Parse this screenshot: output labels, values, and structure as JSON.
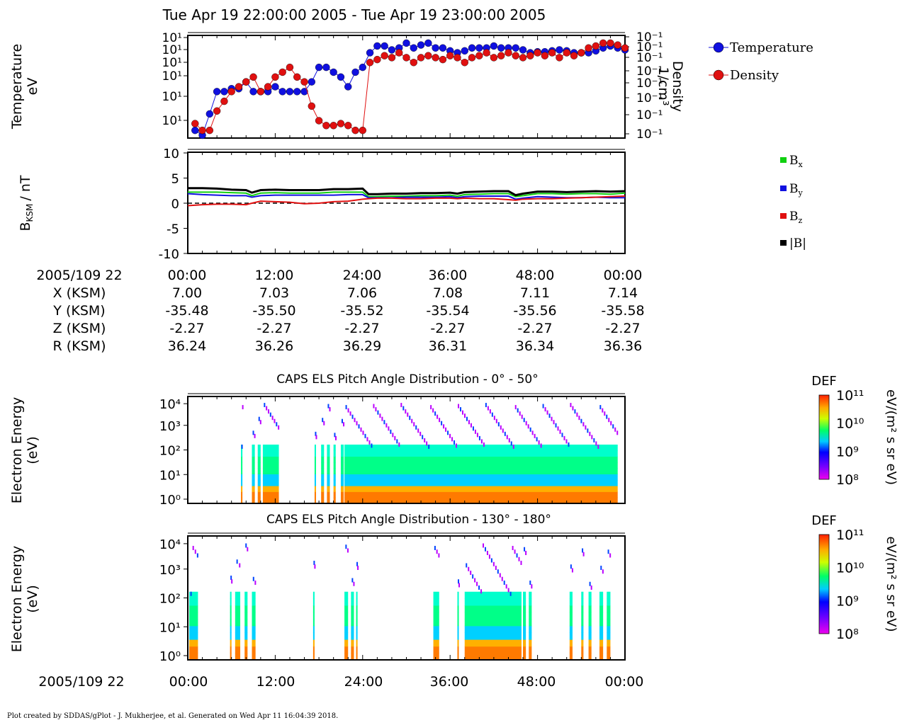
{
  "title": "Tue Apr 19 22:00:00 2005 - Tue Apr 19 23:00:00 2005",
  "footer": "Plot created by SDDAS/gPlot - J. Mukherjee, et al.  Generated on Wed Apr 11 16:04:39 2018.",
  "colors": {
    "temperature": "#1010e0",
    "density": "#e01010",
    "bx": "#10d010",
    "by": "#1010e0",
    "bz": "#e01010",
    "btot": "#000000"
  },
  "chart_data": [
    {
      "type": "scatter",
      "ylabel_left": "Temperature",
      "ylabel_left_unit": "eV",
      "ylabel_right": "Density",
      "ylabel_right_unit": "1/cm³",
      "yticks_left": [
        "10¹",
        "10¹",
        "10¹",
        "10¹",
        "10¹",
        "10¹",
        "10¹"
      ],
      "yticks_right": [
        "10⁻¹",
        "10⁻¹",
        "10⁻¹",
        "10⁻¹",
        "10⁻¹",
        "10⁻¹",
        "10⁻¹",
        "10⁻¹"
      ],
      "xlim": [
        0,
        60
      ],
      "legend": [
        "Temperature",
        "Density"
      ],
      "legend_position": "right-outside",
      "series": [
        {
          "name": "Temperature",
          "x": [
            1,
            2,
            3,
            4,
            5,
            6,
            7,
            8,
            9,
            10,
            11,
            12,
            13,
            14,
            15,
            16,
            17,
            18,
            19,
            20,
            21,
            22,
            23,
            24,
            25,
            26,
            27,
            28,
            29,
            30,
            31,
            32,
            33,
            34,
            35,
            36,
            37,
            38,
            39,
            40,
            41,
            42,
            43,
            44,
            45,
            46,
            47,
            48,
            49,
            50,
            51,
            52,
            53,
            54,
            55,
            56,
            57,
            58,
            59,
            60
          ],
          "y": [
            0.05,
            0.0,
            0.22,
            0.45,
            0.45,
            0.48,
            0.48,
            0.55,
            0.45,
            0.45,
            0.45,
            0.5,
            0.45,
            0.45,
            0.45,
            0.45,
            0.55,
            0.7,
            0.7,
            0.65,
            0.6,
            0.5,
            0.65,
            0.7,
            0.85,
            0.92,
            0.92,
            0.88,
            0.9,
            0.95,
            0.9,
            0.93,
            0.95,
            0.9,
            0.9,
            0.87,
            0.85,
            0.87,
            0.9,
            0.9,
            0.9,
            0.92,
            0.9,
            0.9,
            0.9,
            0.88,
            0.85,
            0.86,
            0.86,
            0.87,
            0.88,
            0.87,
            0.85,
            0.85,
            0.85,
            0.87,
            0.9,
            0.92,
            0.9,
            0.88
          ]
        },
        {
          "name": "Density",
          "x": [
            1,
            2,
            3,
            4,
            5,
            6,
            7,
            8,
            9,
            10,
            11,
            12,
            13,
            14,
            15,
            16,
            17,
            18,
            19,
            20,
            21,
            22,
            23,
            24,
            25,
            26,
            27,
            28,
            29,
            30,
            31,
            32,
            33,
            34,
            35,
            36,
            37,
            38,
            39,
            40,
            41,
            42,
            43,
            44,
            45,
            46,
            47,
            48,
            49,
            50,
            51,
            52,
            53,
            54,
            55,
            56,
            57,
            58,
            59,
            60
          ],
          "y": [
            0.12,
            0.05,
            0.05,
            0.25,
            0.35,
            0.45,
            0.5,
            0.55,
            0.6,
            0.45,
            0.5,
            0.6,
            0.65,
            0.7,
            0.6,
            0.55,
            0.3,
            0.15,
            0.1,
            0.1,
            0.12,
            0.1,
            0.05,
            0.05,
            0.75,
            0.78,
            0.82,
            0.8,
            0.85,
            0.8,
            0.75,
            0.8,
            0.82,
            0.8,
            0.78,
            0.82,
            0.8,
            0.75,
            0.8,
            0.82,
            0.85,
            0.8,
            0.82,
            0.85,
            0.82,
            0.8,
            0.82,
            0.85,
            0.82,
            0.85,
            0.8,
            0.85,
            0.82,
            0.85,
            0.9,
            0.92,
            0.95,
            0.95,
            0.93,
            0.9
          ]
        }
      ]
    },
    {
      "type": "line",
      "ylabel": "B",
      "ylabel_sub": "KSM",
      "ylabel_unit": "/ nT",
      "ylim": [
        -10,
        10
      ],
      "yticks": [
        10,
        5,
        0,
        -5,
        -10
      ],
      "xlim": [
        0,
        60
      ],
      "legend_position": "right-outside",
      "legend": [
        {
          "label": "B",
          "sub": "x",
          "color_key": "bx"
        },
        {
          "label": "B",
          "sub": "y",
          "color_key": "by"
        },
        {
          "label": "B",
          "sub": "z",
          "color_key": "bz"
        },
        {
          "label": "|B|",
          "sub": "",
          "color_key": "btot"
        }
      ],
      "x": [
        0,
        2,
        4,
        6,
        8,
        8.8,
        10,
        12,
        14,
        16,
        18,
        20,
        22,
        24,
        24.8,
        26,
        28,
        30,
        32,
        34,
        36,
        37,
        38,
        40,
        42,
        44,
        45,
        46,
        48,
        50,
        52,
        54,
        56,
        58,
        60
      ],
      "series": [
        {
          "name": "Bx",
          "color_key": "bx",
          "values": [
            2.2,
            2.2,
            2.2,
            2.1,
            2.0,
            1.5,
            2.0,
            2.1,
            2.0,
            2.0,
            2.0,
            2.2,
            2.2,
            2.2,
            1.3,
            1.3,
            1.4,
            1.4,
            1.5,
            1.5,
            1.6,
            1.4,
            1.7,
            1.8,
            1.9,
            1.9,
            1.3,
            1.5,
            1.9,
            1.9,
            1.8,
            1.9,
            1.9,
            1.8,
            2.0
          ]
        },
        {
          "name": "By",
          "color_key": "by",
          "values": [
            1.9,
            1.7,
            1.6,
            1.5,
            1.5,
            1.2,
            1.5,
            1.6,
            1.6,
            1.6,
            1.6,
            1.6,
            1.7,
            1.7,
            1.1,
            1.1,
            1.1,
            1.2,
            1.2,
            1.2,
            1.3,
            1.1,
            1.3,
            1.4,
            1.4,
            1.4,
            0.8,
            1.0,
            1.3,
            1.2,
            1.1,
            1.1,
            1.2,
            1.1,
            1.1
          ]
        },
        {
          "name": "Bz",
          "color_key": "bz",
          "values": [
            -0.5,
            -0.3,
            -0.2,
            -0.2,
            -0.3,
            0.0,
            0.4,
            0.3,
            0.2,
            -0.1,
            0.0,
            0.3,
            0.4,
            0.8,
            0.9,
            1.0,
            1.0,
            0.9,
            0.9,
            1.0,
            1.0,
            0.9,
            1.0,
            0.9,
            0.9,
            0.7,
            0.6,
            0.8,
            0.9,
            0.9,
            1.0,
            1.1,
            1.2,
            1.3,
            1.4
          ]
        },
        {
          "name": "|B|",
          "color_key": "btot",
          "values": [
            3.0,
            3.0,
            2.9,
            2.7,
            2.6,
            2.1,
            2.6,
            2.7,
            2.6,
            2.6,
            2.6,
            2.8,
            2.8,
            2.9,
            1.8,
            1.8,
            1.9,
            1.9,
            2.0,
            2.0,
            2.1,
            1.9,
            2.2,
            2.3,
            2.4,
            2.4,
            1.6,
            1.9,
            2.3,
            2.3,
            2.2,
            2.3,
            2.4,
            2.3,
            2.4
          ]
        }
      ]
    },
    {
      "type": "heatmap",
      "title": "CAPS ELS Pitch Angle Distribution - 0° - 50°",
      "ylabel": "Electron Energy",
      "ylabel_unit": "(eV)",
      "yticks": [
        "10⁰",
        "10¹",
        "10²",
        "10³",
        "10⁴"
      ],
      "colorbar_title": "DEF",
      "colorbar_unit": "eV/(m² s sr eV)",
      "colorbar_ticks": [
        "10¹¹",
        "10¹⁰",
        "10⁹",
        "10⁸"
      ],
      "data_segments": [
        [
          7.3,
          7.5
        ],
        [
          8.8,
          9.2
        ],
        [
          9.6,
          10.0
        ],
        [
          10.3,
          12.5
        ],
        [
          17.4,
          17.6
        ],
        [
          18.3,
          18.7
        ],
        [
          19.1,
          19.5
        ],
        [
          20.0,
          20.3
        ],
        [
          21.0,
          21.4
        ],
        [
          21.5,
          59.0
        ]
      ]
    },
    {
      "type": "heatmap",
      "title": "CAPS ELS Pitch Angle Distribution - 130° - 180°",
      "ylabel": "Electron Energy",
      "ylabel_unit": "(eV)",
      "yticks": [
        "10⁰",
        "10¹",
        "10²",
        "10³",
        "10⁴"
      ],
      "colorbar_title": "DEF",
      "colorbar_unit": "eV/(m² s sr eV)",
      "colorbar_ticks": [
        "10¹¹",
        "10¹⁰",
        "10⁹",
        "10⁸"
      ],
      "data_segments": [
        [
          0.2,
          1.4
        ],
        [
          5.8,
          6.0
        ],
        [
          6.5,
          7.2
        ],
        [
          7.8,
          8.2
        ],
        [
          8.8,
          9.3
        ],
        [
          17.2,
          17.4
        ],
        [
          21.5,
          22.0
        ],
        [
          22.4,
          22.8
        ],
        [
          23.1,
          23.3
        ],
        [
          33.7,
          34.5
        ],
        [
          37.0,
          37.2
        ],
        [
          38.0,
          45.8
        ],
        [
          46.0,
          46.4
        ],
        [
          46.8,
          47.2
        ],
        [
          52.4,
          52.8
        ],
        [
          54.0,
          54.3
        ],
        [
          55.0,
          55.4
        ],
        [
          56.5,
          57.0
        ],
        [
          57.5,
          58.0
        ]
      ]
    }
  ],
  "x_axis": {
    "label": "2005/109 22",
    "ticks": [
      "00:00",
      "12:00",
      "24:00",
      "36:00",
      "48:00",
      "00:00"
    ]
  },
  "ephemeris": [
    {
      "label": "X (KSM)",
      "values": [
        "7.00",
        "7.03",
        "7.06",
        "7.08",
        "7.11",
        "7.14"
      ]
    },
    {
      "label": "Y (KSM)",
      "values": [
        "-35.48",
        "-35.50",
        "-35.52",
        "-35.54",
        "-35.56",
        "-35.58"
      ]
    },
    {
      "label": "Z (KSM)",
      "values": [
        "-2.27",
        "-2.27",
        "-2.27",
        "-2.27",
        "-2.27",
        "-2.27"
      ]
    },
    {
      "label": "R (KSM)",
      "values": [
        "36.24",
        "36.26",
        "36.29",
        "36.31",
        "36.34",
        "36.36"
      ]
    }
  ]
}
